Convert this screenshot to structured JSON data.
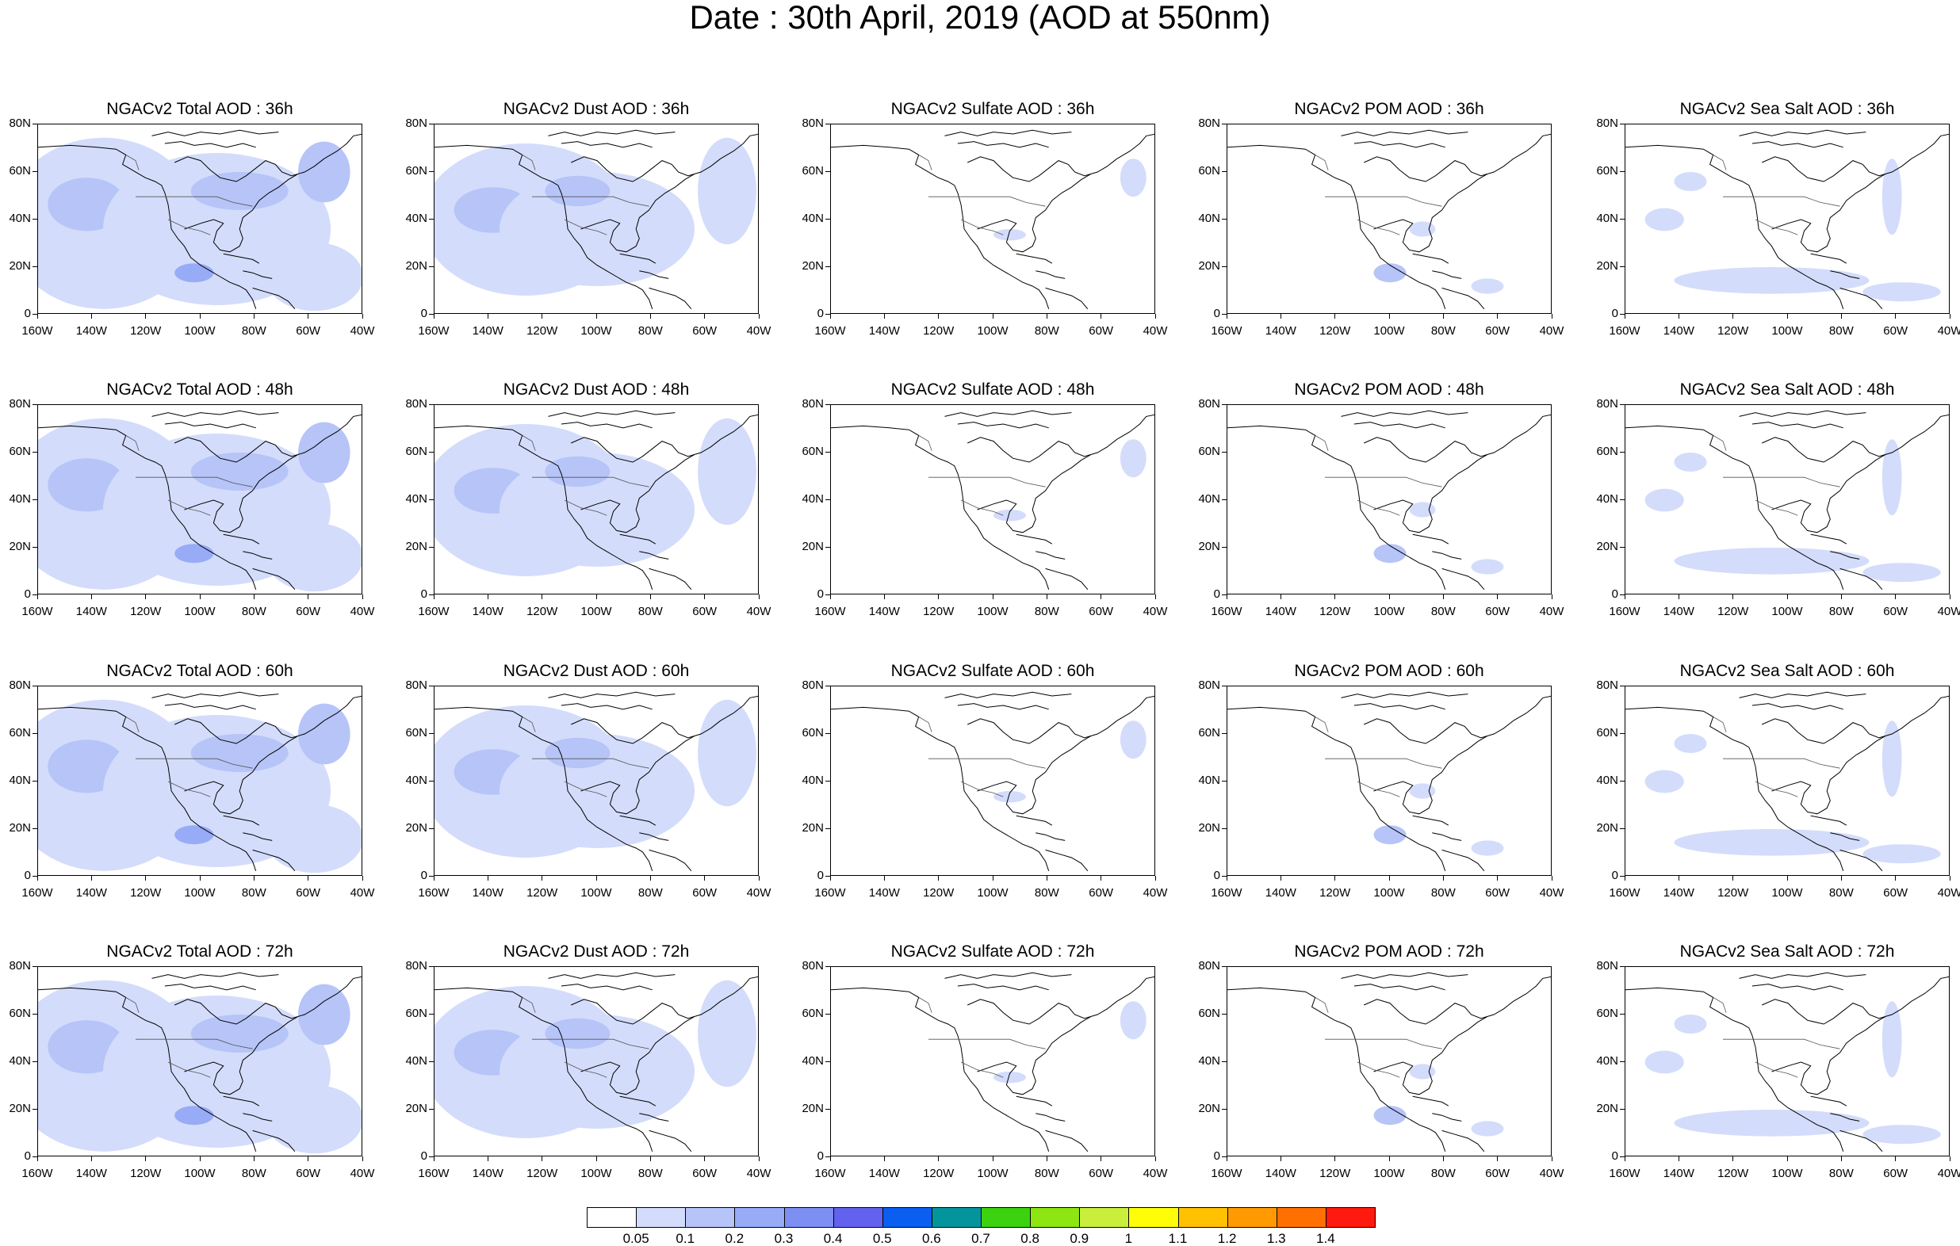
{
  "title": "Date : 30th April, 2019 (AOD at 550nm)",
  "lat_labels": [
    "80N",
    "60N",
    "40N",
    "20N",
    "0"
  ],
  "lon_labels": [
    "160W",
    "140W",
    "120W",
    "100W",
    "80W",
    "60W",
    "40W"
  ],
  "panels": [
    [
      {
        "title": "NGACv2 Total AOD : 36h",
        "species": "total"
      },
      {
        "title": "NGACv2 Dust AOD : 36h",
        "species": "dust"
      },
      {
        "title": "NGACv2 Sulfate AOD : 36h",
        "species": "sulfate"
      },
      {
        "title": "NGACv2 POM AOD : 36h",
        "species": "pom"
      },
      {
        "title": "NGACv2 Sea Salt AOD : 36h",
        "species": "seasalt"
      }
    ],
    [
      {
        "title": "NGACv2 Total AOD : 48h",
        "species": "total"
      },
      {
        "title": "NGACv2 Dust AOD : 48h",
        "species": "dust"
      },
      {
        "title": "NGACv2 Sulfate AOD : 48h",
        "species": "sulfate"
      },
      {
        "title": "NGACv2 POM AOD : 48h",
        "species": "pom"
      },
      {
        "title": "NGACv2 Sea Salt AOD : 48h",
        "species": "seasalt"
      }
    ],
    [
      {
        "title": "NGACv2 Total AOD : 60h",
        "species": "total"
      },
      {
        "title": "NGACv2 Dust AOD : 60h",
        "species": "dust"
      },
      {
        "title": "NGACv2 Sulfate AOD : 60h",
        "species": "sulfate"
      },
      {
        "title": "NGACv2 POM AOD : 60h",
        "species": "pom"
      },
      {
        "title": "NGACv2 Sea Salt AOD : 60h",
        "species": "seasalt"
      }
    ],
    [
      {
        "title": "NGACv2 Total AOD : 72h",
        "species": "total"
      },
      {
        "title": "NGACv2 Dust AOD : 72h",
        "species": "dust"
      },
      {
        "title": "NGACv2 Sulfate AOD : 72h",
        "species": "sulfate"
      },
      {
        "title": "NGACv2 POM AOD : 72h",
        "species": "pom"
      },
      {
        "title": "NGACv2 Sea Salt  AOD : 72h",
        "species": "seasalt"
      }
    ]
  ],
  "colorbar": {
    "labels": [
      "0.05",
      "0.1",
      "0.2",
      "0.3",
      "0.4",
      "0.5",
      "0.6",
      "0.7",
      "0.8",
      "0.9",
      "1",
      "1.1",
      "1.2",
      "1.3",
      "1.4"
    ],
    "colors": [
      "#ffffff",
      "#d3dcfb",
      "#b6c4f8",
      "#98abf6",
      "#7d8ff2",
      "#6262ef",
      "#0a5ef0",
      "#03959b",
      "#3cd210",
      "#8de612",
      "#c9ef3c",
      "#fffd08",
      "#ffc100",
      "#ff9a00",
      "#ff7000",
      "#ff1a10"
    ]
  },
  "colors": {
    "coast": "#000000",
    "level1": "#d3dcfb",
    "level2": "#b6c4f8",
    "level3": "#98abf6",
    "level4": "#7d8ff2"
  }
}
